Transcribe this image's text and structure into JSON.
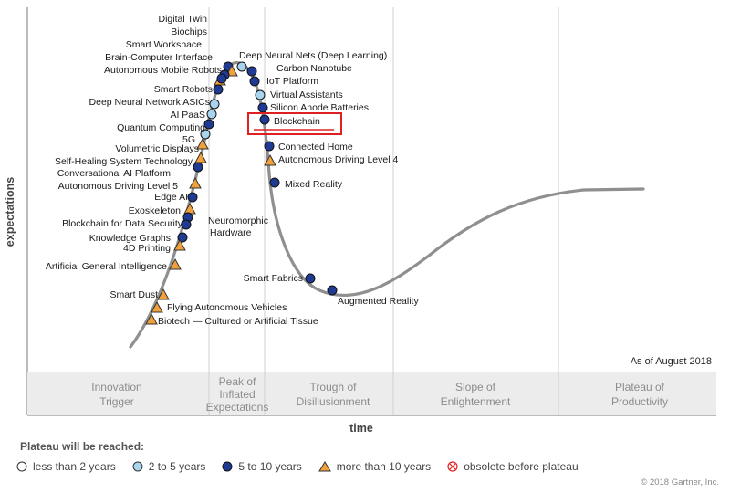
{
  "chart_data": {
    "type": "scatter",
    "ylabel": "expectations",
    "xlabel": "time",
    "as_of": "As of August 2018",
    "phases": [
      "Innovation Trigger",
      "Peak of Inflated Expectations",
      "Trough of Disillusionment",
      "Slope of Enlightenment",
      "Plateau of Productivity"
    ],
    "legend_title": "Plateau will be reached:",
    "legend": [
      {
        "key": "lt2",
        "label": "less than 2 years",
        "marker": "circle-white"
      },
      {
        "key": "2to5",
        "label": "2 to 5 years",
        "marker": "circle-light-blue"
      },
      {
        "key": "5to10",
        "label": "5 to 10 years",
        "marker": "circle-dark-blue"
      },
      {
        "key": "gt10",
        "label": "more than 10 years",
        "marker": "triangle-orange"
      },
      {
        "key": "obsolete",
        "label": "obsolete before plateau",
        "marker": "circle-x-red"
      }
    ],
    "highlighted": "Blockchain",
    "technologies": [
      {
        "name": "Digital Twin",
        "phase": "Peak of Inflated Expectations",
        "plateau": "5to10"
      },
      {
        "name": "Biochips",
        "phase": "Peak of Inflated Expectations",
        "plateau": "gt10"
      },
      {
        "name": "Smart Workspace",
        "phase": "Peak of Inflated Expectations",
        "plateau": "5to10"
      },
      {
        "name": "Brain-Computer Interface",
        "phase": "Peak of Inflated Expectations",
        "plateau": "gt10"
      },
      {
        "name": "Autonomous Mobile Robots",
        "phase": "Peak of Inflated Expectations",
        "plateau": "5to10"
      },
      {
        "name": "Deep Neural Nets (Deep Learning)",
        "phase": "Peak of Inflated Expectations",
        "plateau": "2to5"
      },
      {
        "name": "Carbon Nanotube",
        "phase": "Peak of Inflated Expectations",
        "plateau": "5to10"
      },
      {
        "name": "IoT Platform",
        "phase": "Peak of Inflated Expectations",
        "plateau": "5to10"
      },
      {
        "name": "Virtual Assistants",
        "phase": "Peak of Inflated Expectations",
        "plateau": "2to5"
      },
      {
        "name": "Silicon Anode Batteries",
        "phase": "Peak of Inflated Expectations",
        "plateau": "5to10"
      },
      {
        "name": "Blockchain",
        "phase": "Peak of Inflated Expectations",
        "plateau": "5to10"
      },
      {
        "name": "Smart Robots",
        "phase": "Peak of Inflated Expectations",
        "plateau": "5to10"
      },
      {
        "name": "Deep Neural Network ASICs",
        "phase": "Peak of Inflated Expectations",
        "plateau": "2to5"
      },
      {
        "name": "AI PaaS",
        "phase": "Peak of Inflated Expectations",
        "plateau": "2to5"
      },
      {
        "name": "Quantum Computing",
        "phase": "Peak of Inflated Expectations",
        "plateau": "5to10"
      },
      {
        "name": "5G",
        "phase": "Peak of Inflated Expectations",
        "plateau": "2to5"
      },
      {
        "name": "Volumetric Displays",
        "phase": "Innovation Trigger",
        "plateau": "gt10"
      },
      {
        "name": "Self-Healing System Technology",
        "phase": "Innovation Trigger",
        "plateau": "gt10"
      },
      {
        "name": "Conversational AI Platform",
        "phase": "Innovation Trigger",
        "plateau": "5to10"
      },
      {
        "name": "Autonomous Driving Level 5",
        "phase": "Innovation Trigger",
        "plateau": "gt10"
      },
      {
        "name": "Edge AI",
        "phase": "Innovation Trigger",
        "plateau": "5to10"
      },
      {
        "name": "Exoskeleton",
        "phase": "Innovation Trigger",
        "plateau": "gt10"
      },
      {
        "name": "Blockchain for Data Security",
        "phase": "Innovation Trigger",
        "plateau": "5to10"
      },
      {
        "name": "Neuromorphic Hardware",
        "phase": "Innovation Trigger",
        "plateau": "5to10"
      },
      {
        "name": "Knowledge Graphs",
        "phase": "Innovation Trigger",
        "plateau": "5to10"
      },
      {
        "name": "4D Printing",
        "phase": "Innovation Trigger",
        "plateau": "gt10"
      },
      {
        "name": "Artificial General Intelligence",
        "phase": "Innovation Trigger",
        "plateau": "gt10"
      },
      {
        "name": "Smart Dust",
        "phase": "Innovation Trigger",
        "plateau": "gt10"
      },
      {
        "name": "Flying Autonomous Vehicles",
        "phase": "Innovation Trigger",
        "plateau": "gt10"
      },
      {
        "name": "Biotech — Cultured or Artificial Tissue",
        "phase": "Innovation Trigger",
        "plateau": "gt10"
      },
      {
        "name": "Connected Home",
        "phase": "Trough of Disillusionment",
        "plateau": "5to10"
      },
      {
        "name": "Autonomous Driving Level 4",
        "phase": "Trough of Disillusionment",
        "plateau": "gt10"
      },
      {
        "name": "Mixed Reality",
        "phase": "Trough of Disillusionment",
        "plateau": "5to10"
      },
      {
        "name": "Smart Fabrics",
        "phase": "Trough of Disillusionment",
        "plateau": "5to10"
      },
      {
        "name": "Augmented Reality",
        "phase": "Trough of Disillusionment",
        "plateau": "5to10"
      }
    ]
  },
  "colors": {
    "curve": "#8f8f8f",
    "dark_blue": "#1f3a93",
    "light_blue": "#a8d4ee",
    "orange": "#f0a13c",
    "highlight_red": "#e02020",
    "phase_band": "#ececec"
  },
  "copyright": "© 2018 Gartner, Inc."
}
